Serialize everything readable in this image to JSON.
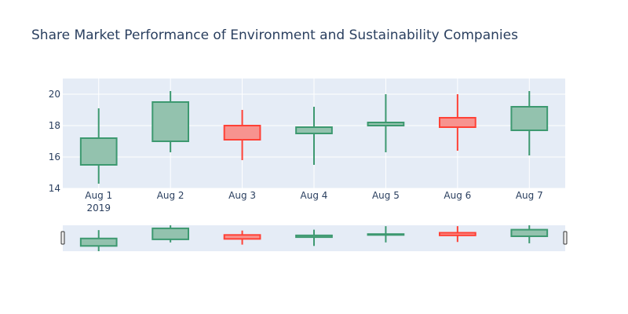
{
  "chart_data": {
    "type": "candlestick",
    "title": "Share Market Performance of Environment and Sustainability Companies",
    "xlabel": "",
    "ylabel": "",
    "x_tick_labels": [
      "Aug 1",
      "Aug 2",
      "Aug 3",
      "Aug 4",
      "Aug 5",
      "Aug 6",
      "Aug 7"
    ],
    "x_year_label": "2019",
    "ylim": [
      14,
      21
    ],
    "y_ticks": [
      14,
      16,
      18,
      20
    ],
    "grid": true,
    "range_slider": true,
    "colors": {
      "plot_bg": "#e5ecf6",
      "grid": "#ffffff",
      "increasing_line": "#3d9970",
      "increasing_fill": "#93c2ae",
      "decreasing_line": "#ff4136",
      "decreasing_fill": "#f7938f",
      "text": "#2a3f5f"
    },
    "candles": [
      {
        "date": "Aug 1",
        "open": 15.5,
        "high": 19.1,
        "low": 14.3,
        "close": 17.2
      },
      {
        "date": "Aug 2",
        "open": 17.0,
        "high": 20.2,
        "low": 16.3,
        "close": 19.5
      },
      {
        "date": "Aug 3",
        "open": 18.0,
        "high": 19.0,
        "low": 15.8,
        "close": 17.1
      },
      {
        "date": "Aug 4",
        "open": 17.5,
        "high": 19.2,
        "low": 15.5,
        "close": 17.9
      },
      {
        "date": "Aug 5",
        "open": 18.0,
        "high": 20.0,
        "low": 16.3,
        "close": 18.2
      },
      {
        "date": "Aug 6",
        "open": 18.5,
        "high": 20.0,
        "low": 16.4,
        "close": 17.9
      },
      {
        "date": "Aug 7",
        "open": 17.7,
        "high": 20.2,
        "low": 16.1,
        "close": 19.2
      }
    ]
  }
}
